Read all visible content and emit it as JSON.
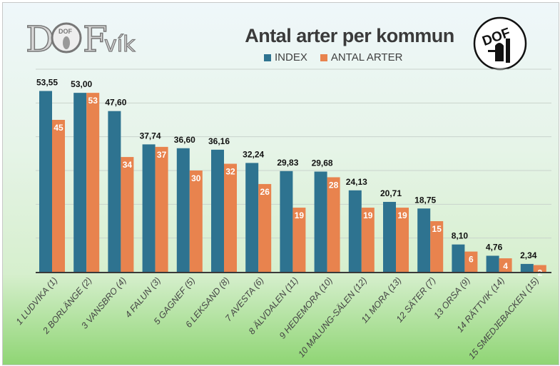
{
  "logos": {
    "left_text": "DOFvík",
    "right_text": "DOF"
  },
  "colors": {
    "index": "#2e7390",
    "antal": "#e8834e",
    "grid": "#c9d3cc",
    "axis": "#3a3a3a"
  },
  "chart_data": {
    "type": "bar",
    "title": "Antal arter per kommun",
    "xlabel": "",
    "ylabel": "",
    "ylim": [
      0,
      60
    ],
    "grid": true,
    "legend_position": "top-center",
    "categories": [
      "1 LUDVIKA (1)",
      "2 BORLÄNGE (2)",
      "3 VANSBRO (4)",
      "4 FALUN (3)",
      "5 GAGNEF (5)",
      "6 LEKSAND (8)",
      "7 AVESTA (6)",
      "8 ÄLVDALEN (11)",
      "9 HEDEMORA (10)",
      "10 MALUNG-SÄLEN (12)",
      "11 MORA (13)",
      "12 SÄTER (7)",
      "13 ORSA (9)",
      "14 RÄTTVIK (14)",
      "15 SMEDJEBACKEN (15)"
    ],
    "series": [
      {
        "name": "INDEX",
        "values": [
          53.55,
          53.0,
          47.6,
          37.74,
          36.6,
          36.16,
          32.24,
          29.83,
          29.68,
          24.13,
          20.71,
          18.75,
          8.1,
          4.76,
          2.34
        ],
        "labels": [
          "53,55",
          "53,00",
          "47,60",
          "37,74",
          "36,60",
          "36,16",
          "32,24",
          "29,83",
          "29,68",
          "24,13",
          "20,71",
          "18,75",
          "8,10",
          "4,76",
          "2,34"
        ]
      },
      {
        "name": "ANTAL ARTER",
        "values": [
          45,
          53,
          34,
          37,
          30,
          32,
          26,
          19,
          28,
          19,
          19,
          15,
          6,
          4,
          2
        ],
        "labels": [
          "45",
          "53",
          "34",
          "37",
          "30",
          "32",
          "26",
          "19",
          "28",
          "19",
          "19",
          "15",
          "6",
          "4",
          "2"
        ]
      }
    ]
  }
}
